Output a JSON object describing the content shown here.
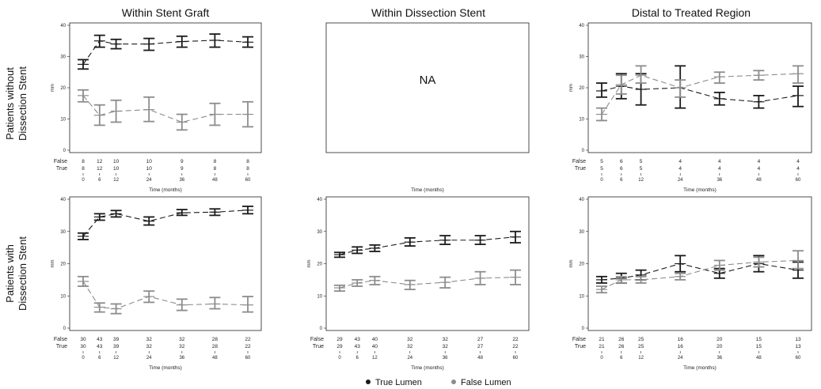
{
  "colors": {
    "true_lumen": "#1a1a1a",
    "false_lumen": "#8c8c8c"
  },
  "columns": [
    "Within Stent Graft",
    "Within Dissection Stent",
    "Distal to Treated Region"
  ],
  "rows": [
    [
      "Patients without",
      "Dissection Stent"
    ],
    [
      "Patients with",
      "Dissection Stent"
    ]
  ],
  "legend": [
    "True Lumen",
    "False Lumen"
  ],
  "chart_data": [
    {
      "type": "line",
      "row": 0,
      "col": 0,
      "x": [
        0,
        6,
        12,
        24,
        36,
        48,
        60
      ],
      "xlabel": "Time (months)",
      "ylabel": "mm",
      "ylim": [
        0,
        40
      ],
      "yticks": [
        0,
        10,
        20,
        30,
        40
      ],
      "series": [
        {
          "name": "True Lumen",
          "values": [
            27.5,
            35.0,
            34.0,
            34.0,
            34.8,
            35.2,
            34.6
          ],
          "lo": [
            26.0,
            33.0,
            32.5,
            32.0,
            33.0,
            33.0,
            33.0
          ],
          "hi": [
            29.0,
            36.8,
            35.5,
            35.8,
            36.5,
            37.2,
            36.3
          ]
        },
        {
          "name": "False Lumen",
          "values": [
            17.5,
            11.2,
            12.5,
            13.0,
            9.0,
            11.5,
            11.5
          ],
          "lo": [
            15.5,
            8.0,
            9.0,
            9.2,
            6.5,
            8.0,
            7.5
          ],
          "hi": [
            19.3,
            14.5,
            16.0,
            17.0,
            11.5,
            15.0,
            15.5
          ]
        }
      ],
      "counts": {
        "False": [
          "8",
          "12",
          "10",
          "10",
          "9",
          "8",
          "8"
        ],
        "True": [
          "8",
          "12",
          "10",
          "10",
          "9",
          "8",
          "8"
        ]
      }
    },
    {
      "type": "line",
      "row": 0,
      "col": 1,
      "na": "NA",
      "xlabel": "Time (months)",
      "series": []
    },
    {
      "type": "line",
      "row": 0,
      "col": 2,
      "x": [
        0,
        6,
        12,
        24,
        36,
        48,
        60
      ],
      "xlabel": "Time (months)",
      "ylabel": "mm",
      "ylim": [
        0,
        40
      ],
      "yticks": [
        0,
        10,
        20,
        30,
        40
      ],
      "series": [
        {
          "name": "True Lumen",
          "values": [
            19.0,
            20.5,
            19.5,
            20.0,
            16.5,
            15.5,
            17.5
          ],
          "lo": [
            17.0,
            16.5,
            14.5,
            13.5,
            14.5,
            13.5,
            14.0
          ],
          "hi": [
            21.5,
            24.5,
            24.5,
            27.0,
            18.5,
            17.5,
            20.5
          ]
        },
        {
          "name": "False Lumen",
          "values": [
            11.5,
            21.0,
            24.0,
            20.0,
            23.5,
            24.0,
            24.5
          ],
          "lo": [
            9.5,
            18.0,
            21.5,
            17.0,
            21.5,
            22.5,
            21.5
          ],
          "hi": [
            13.5,
            24.0,
            27.0,
            22.5,
            25.0,
            25.5,
            27.0
          ]
        }
      ],
      "counts": {
        "False": [
          "5",
          "6",
          "5",
          "4",
          "4",
          "4",
          "4"
        ],
        "True": [
          "5",
          "6",
          "5",
          "4",
          "4",
          "4",
          "4"
        ]
      }
    },
    {
      "type": "line",
      "row": 1,
      "col": 0,
      "x": [
        0,
        6,
        12,
        24,
        36,
        48,
        60
      ],
      "xlabel": "Time (months)",
      "ylabel": "mm",
      "ylim": [
        0,
        40
      ],
      "yticks": [
        0,
        10,
        20,
        30,
        40
      ],
      "series": [
        {
          "name": "True Lumen",
          "values": [
            28.5,
            34.5,
            35.5,
            33.2,
            35.8,
            36.0,
            36.6
          ],
          "lo": [
            27.5,
            33.5,
            34.5,
            32.0,
            35.0,
            35.0,
            35.5
          ],
          "hi": [
            29.5,
            35.5,
            36.5,
            34.5,
            36.8,
            37.0,
            37.8
          ]
        },
        {
          "name": "False Lumen",
          "values": [
            14.5,
            6.5,
            6.0,
            9.8,
            7.2,
            7.5,
            7.2
          ],
          "lo": [
            13.0,
            5.0,
            4.5,
            8.0,
            5.5,
            6.0,
            5.0
          ],
          "hi": [
            16.0,
            7.8,
            7.5,
            11.5,
            9.0,
            9.5,
            9.8
          ]
        }
      ],
      "counts": {
        "False": [
          "30",
          "43",
          "39",
          "32",
          "32",
          "28",
          "22"
        ],
        "True": [
          "30",
          "43",
          "39",
          "32",
          "32",
          "28",
          "22"
        ]
      }
    },
    {
      "type": "line",
      "row": 1,
      "col": 1,
      "x": [
        0,
        6,
        12,
        24,
        36,
        48,
        60
      ],
      "xlabel": "Time (months)",
      "ylabel": "mm",
      "ylim": [
        0,
        40
      ],
      "yticks": [
        0,
        10,
        20,
        30,
        40
      ],
      "series": [
        {
          "name": "True Lumen",
          "values": [
            22.8,
            24.2,
            24.8,
            26.7,
            27.3,
            27.3,
            28.3
          ],
          "lo": [
            22.0,
            23.2,
            23.8,
            25.5,
            26.0,
            26.0,
            26.5
          ],
          "hi": [
            23.5,
            25.2,
            25.8,
            28.0,
            28.7,
            28.7,
            30.0
          ]
        },
        {
          "name": "False Lumen",
          "values": [
            12.5,
            14.0,
            14.8,
            13.5,
            14.2,
            15.5,
            15.8
          ],
          "lo": [
            11.5,
            13.0,
            13.5,
            12.0,
            12.5,
            13.5,
            13.5
          ],
          "hi": [
            13.3,
            15.0,
            16.0,
            14.8,
            15.8,
            17.5,
            18.0
          ]
        }
      ],
      "counts": {
        "False": [
          "29",
          "43",
          "40",
          "32",
          "32",
          "27",
          "22"
        ],
        "True": [
          "29",
          "43",
          "40",
          "32",
          "32",
          "27",
          "22"
        ]
      }
    },
    {
      "type": "line",
      "row": 1,
      "col": 2,
      "x": [
        0,
        6,
        12,
        24,
        36,
        48,
        60
      ],
      "xlabel": "Time (months)",
      "ylabel": "mm",
      "ylim": [
        0,
        40
      ],
      "yticks": [
        0,
        10,
        20,
        30,
        40
      ],
      "series": [
        {
          "name": "True Lumen",
          "values": [
            15.0,
            15.5,
            16.5,
            20.0,
            17.0,
            20.0,
            18.0
          ],
          "lo": [
            14.0,
            14.0,
            15.0,
            17.5,
            15.5,
            17.5,
            15.5
          ],
          "hi": [
            16.0,
            17.0,
            18.0,
            22.5,
            18.5,
            22.5,
            20.5
          ]
        },
        {
          "name": "False Lumen",
          "values": [
            12.0,
            15.0,
            15.0,
            16.0,
            19.5,
            20.5,
            21.0
          ],
          "lo": [
            11.0,
            14.0,
            14.0,
            15.0,
            18.0,
            19.0,
            18.5
          ],
          "hi": [
            13.0,
            16.0,
            16.0,
            17.0,
            21.0,
            22.0,
            24.0
          ]
        }
      ],
      "counts": {
        "False": [
          "21",
          "26",
          "25",
          "16",
          "20",
          "15",
          "13"
        ],
        "True": [
          "21",
          "26",
          "25",
          "16",
          "20",
          "15",
          "13"
        ]
      }
    }
  ]
}
